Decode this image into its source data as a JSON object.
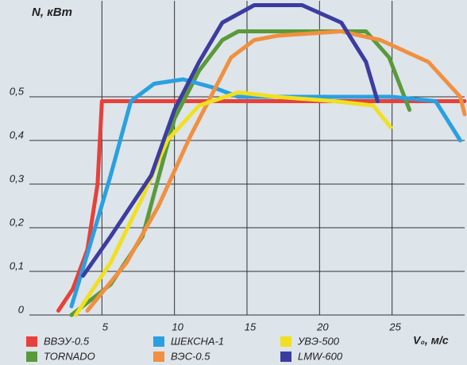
{
  "chart_data": {
    "type": "line",
    "y_label": "N, кВт",
    "x_label": "V₀, м/с",
    "xlim": [
      0,
      30
    ],
    "xticks": [
      5,
      10,
      15,
      20,
      25
    ],
    "ylim": [
      0,
      0.72
    ],
    "yticks": [
      0,
      {
        "value": 0.1,
        "label": "0,1"
      },
      {
        "value": 0.2,
        "label": "0,2"
      },
      {
        "value": 0.3,
        "label": "0,3"
      },
      {
        "value": 0.4,
        "label": "0,4"
      },
      {
        "value": 0.5,
        "label": "0,5"
      }
    ],
    "grid": true,
    "series": [
      {
        "name": "ВВЭУ-0.5",
        "color": "#e8403a",
        "x": [
          2,
          3,
          4,
          4.7,
          5,
          10,
          20,
          30
        ],
        "values": [
          0.01,
          0.06,
          0.15,
          0.3,
          0.49,
          0.49,
          0.49,
          0.49
        ]
      },
      {
        "name": "TORNADO",
        "color": "#5a9a3a",
        "x": [
          2.9,
          5.6,
          7.8,
          10,
          11.7,
          13.3,
          14.4,
          19.9,
          23.2,
          24.8,
          26.2
        ],
        "values": [
          0,
          0.07,
          0.18,
          0.45,
          0.56,
          0.63,
          0.65,
          0.65,
          0.65,
          0.59,
          0.47
        ]
      },
      {
        "name": "ШЕКСНА-1",
        "color": "#2aa0e0",
        "x": [
          2.9,
          4,
          5.6,
          7,
          8.6,
          10.6,
          12.8,
          14.4,
          25,
          28,
          29.7
        ],
        "values": [
          0.02,
          0.14,
          0.32,
          0.49,
          0.53,
          0.54,
          0.52,
          0.5,
          0.5,
          0.49,
          0.4
        ]
      },
      {
        "name": "ВЭС-0.5",
        "color": "#f09040",
        "x": [
          4,
          6.7,
          8.9,
          11.1,
          12.5,
          13.9,
          15.5,
          17.1,
          21.5,
          24.2,
          27.5,
          29.7,
          30
        ],
        "values": [
          0.01,
          0.12,
          0.25,
          0.41,
          0.5,
          0.59,
          0.63,
          0.64,
          0.65,
          0.63,
          0.58,
          0.5,
          0.46
        ]
      },
      {
        "name": "УВЭ-500",
        "color": "#f0e020",
        "x": [
          3.2,
          5.6,
          7.8,
          9.5,
          11.7,
          14.4,
          17,
          21,
          23.7,
          24.9
        ],
        "values": [
          0,
          0.12,
          0.27,
          0.4,
          0.48,
          0.51,
          0.5,
          0.49,
          0.48,
          0.43
        ]
      },
      {
        "name": "LMW-600",
        "color": "#3c3ca0",
        "x": [
          3.7,
          5.6,
          8.4,
          10,
          11.7,
          13.3,
          15.5,
          18.8,
          21.5,
          23.2,
          24
        ],
        "values": [
          0.09,
          0.18,
          0.32,
          0.47,
          0.58,
          0.67,
          0.71,
          0.71,
          0.67,
          0.58,
          0.49
        ]
      }
    ]
  }
}
